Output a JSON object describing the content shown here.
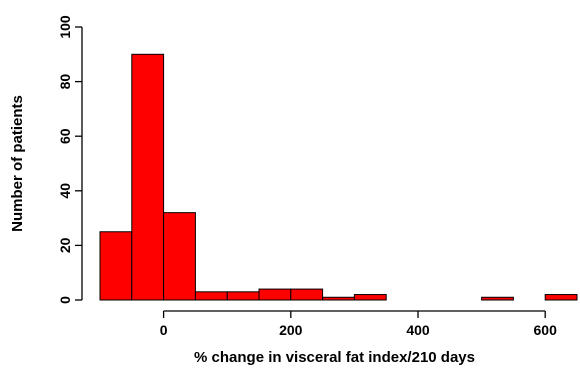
{
  "chart_data": {
    "type": "bar",
    "xlabel": "% change in visceral fat index/210 days",
    "ylabel": "Number of patients",
    "bin_edges": [
      -100,
      -50,
      0,
      50,
      100,
      150,
      200,
      250,
      300,
      350,
      400,
      450,
      500,
      550,
      600,
      650
    ],
    "values": [
      25,
      90,
      32,
      3,
      3,
      4,
      4,
      1,
      2,
      0,
      0,
      0,
      1,
      0,
      2
    ],
    "xlim": [
      -100,
      650
    ],
    "ylim": [
      0,
      100
    ],
    "xticks": [
      0,
      200,
      400,
      600
    ],
    "yticks": [
      0,
      20,
      40,
      60,
      80,
      100
    ],
    "grid": false,
    "colors": {
      "bar_fill": "#ff0000",
      "bar_edge": "#000000"
    }
  }
}
